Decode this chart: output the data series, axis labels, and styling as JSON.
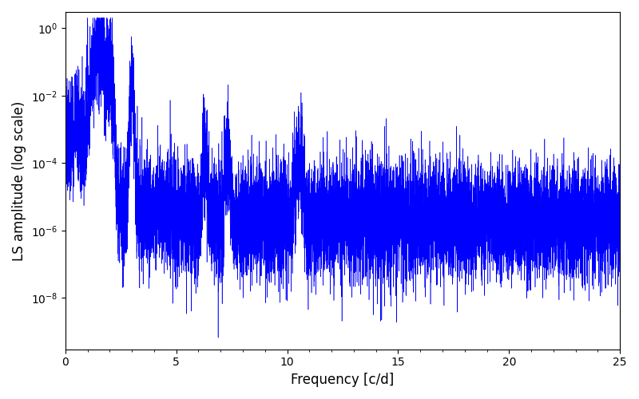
{
  "xlabel": "Frequency [c/d]",
  "ylabel": "LS amplitude (log scale)",
  "xlim": [
    0,
    25
  ],
  "ylim": [
    3e-10,
    3.0
  ],
  "line_color": "#0000FF",
  "background_color": "#FFFFFF",
  "figsize": [
    8.0,
    5.0
  ],
  "dpi": 100,
  "seed": 12345,
  "n_points": 12000,
  "freq_max": 25.0
}
